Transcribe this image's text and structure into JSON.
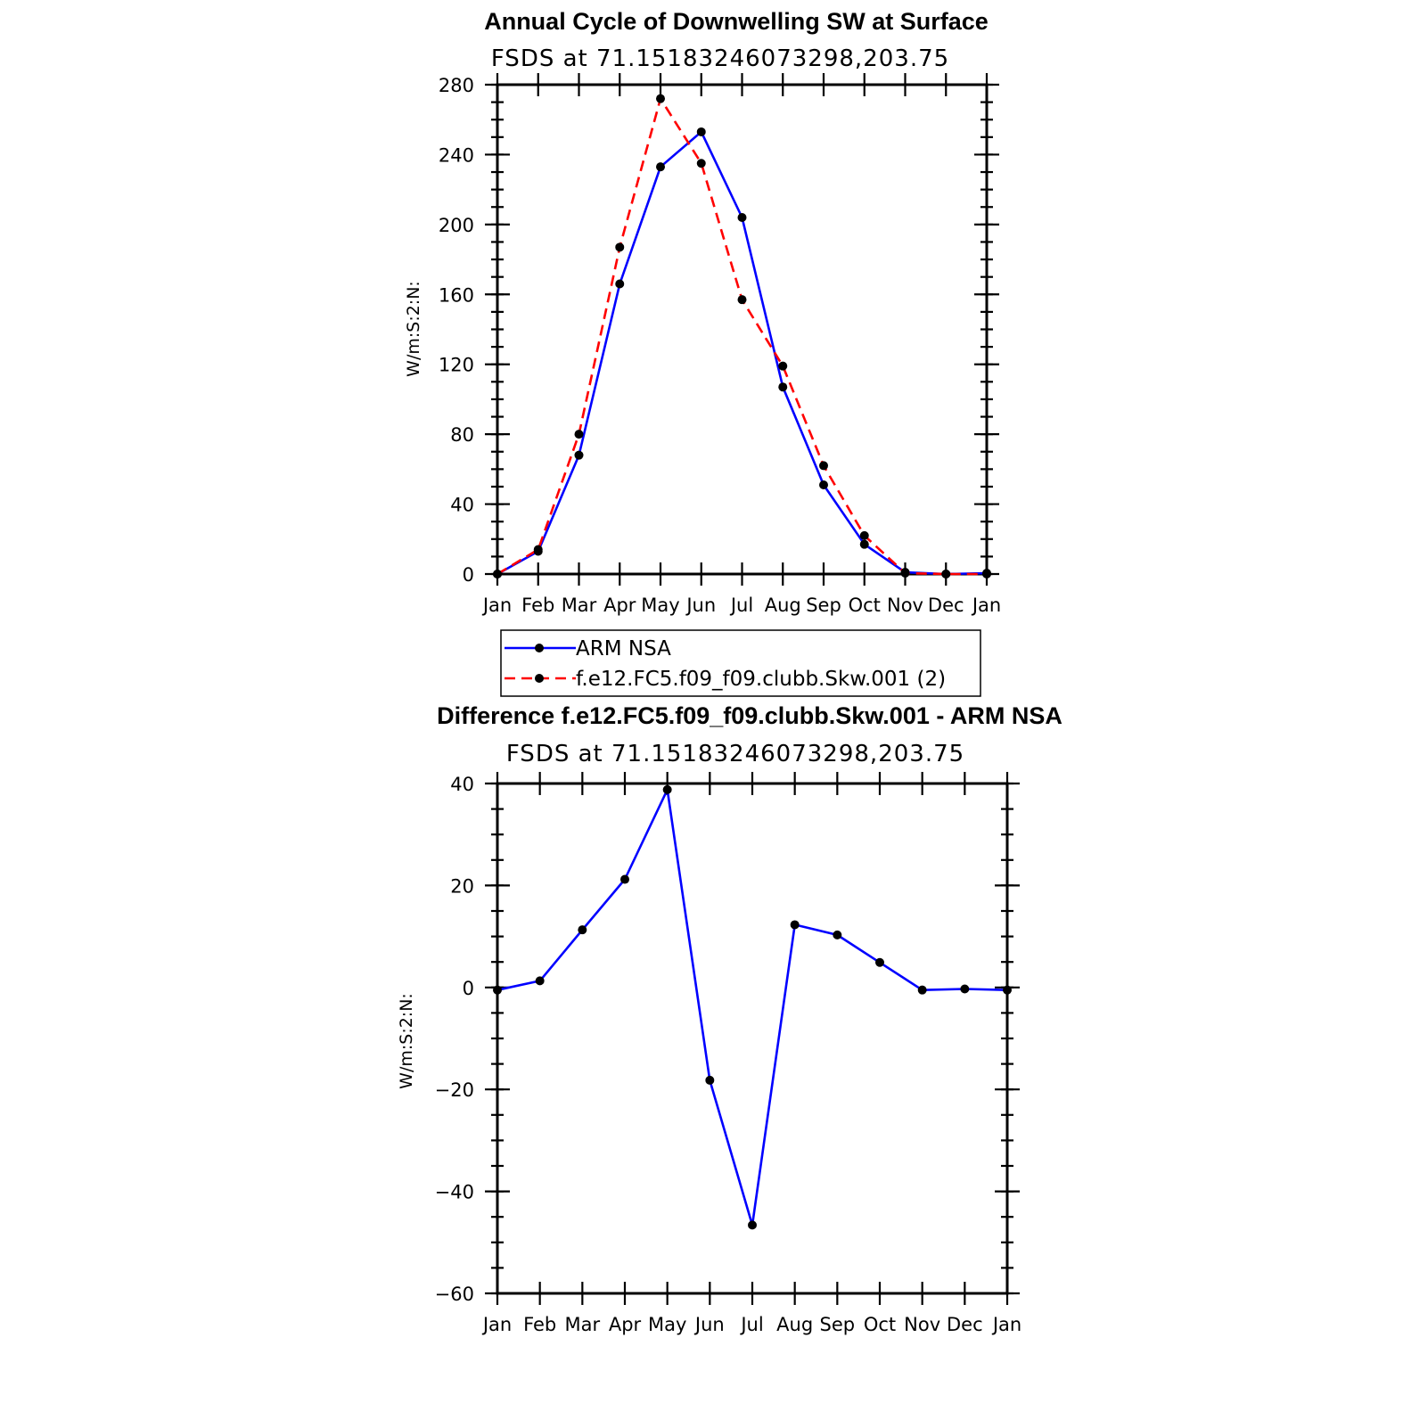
{
  "chart_data": [
    {
      "type": "line",
      "title": "Annual Cycle of Downwelling SW at Surface",
      "subtitle": "FSDS at 71.15183246073298,203.75",
      "ylabel": "W/m:S:2:N:",
      "xlabel": "",
      "categories": [
        "Jan",
        "Feb",
        "Mar",
        "Apr",
        "May",
        "Jun",
        "Jul",
        "Aug",
        "Sep",
        "Oct",
        "Nov",
        "Dec",
        "Jan"
      ],
      "ylim": [
        0,
        280
      ],
      "yticks": [
        0,
        40,
        80,
        120,
        160,
        200,
        240,
        280
      ],
      "series": [
        {
          "name": "ARM NSA",
          "color": "#0000ff",
          "dash": "solid",
          "values": [
            0,
            13,
            68,
            166,
            233,
            253,
            204,
            107,
            51,
            17,
            1,
            0,
            0.5
          ]
        },
        {
          "name": "f.e12.FC5.f09_f09.clubb.Skw.001 (2)",
          "color": "#ff0000",
          "dash": "dashed",
          "values": [
            0,
            14,
            80,
            187,
            272,
            235,
            157,
            119,
            62,
            22,
            0.5,
            0,
            0
          ]
        }
      ],
      "legend": "below"
    },
    {
      "type": "line",
      "title": "Difference f.e12.FC5.f09_f09.clubb.Skw.001 - ARM NSA",
      "subtitle": "FSDS at 71.15183246073298,203.75",
      "ylabel": "W/m:S:2:N:",
      "xlabel": "",
      "categories": [
        "Jan",
        "Feb",
        "Mar",
        "Apr",
        "May",
        "Jun",
        "Jul",
        "Aug",
        "Sep",
        "Oct",
        "Nov",
        "Dec",
        "Jan"
      ],
      "ylim": [
        -60,
        40
      ],
      "yticks": [
        -60,
        -40,
        -20,
        0,
        20,
        40
      ],
      "series": [
        {
          "color": "#0000ff",
          "dash": "solid",
          "values": [
            -0.5,
            1.3,
            11.3,
            21.2,
            38.8,
            -18.2,
            -46.6,
            12.3,
            10.3,
            4.9,
            -0.5,
            -0.3,
            -0.5
          ]
        }
      ]
    }
  ]
}
